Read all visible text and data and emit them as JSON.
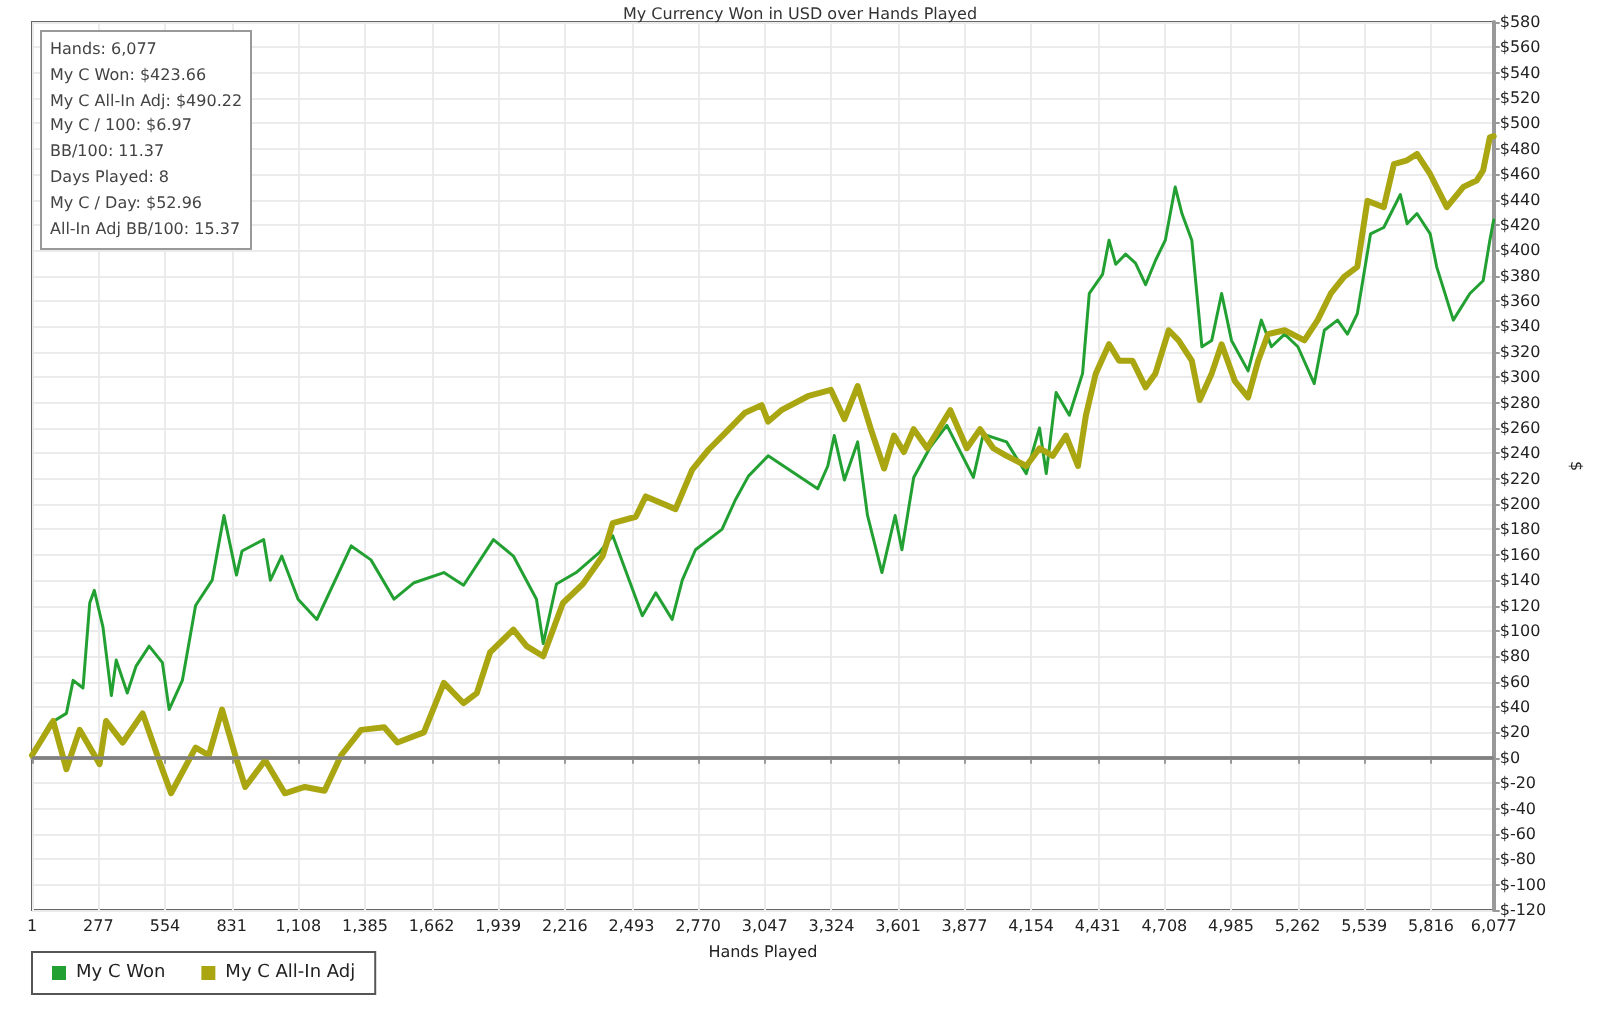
{
  "chart_data": {
    "type": "line",
    "title": "My Currency Won in USD over Hands Played",
    "xlabel": "Hands Played",
    "ylabel": "$",
    "annotations": [
      "Hands: 6,077",
      "My C Won: $423.66",
      "My C All-In Adj: $490.22",
      "My C / 100: $6.97",
      "BB/100: 11.37",
      "Days Played: 8",
      "My C / Day: $52.96",
      "All-In Adj BB/100: 15.37"
    ],
    "xlim": [
      1,
      6077
    ],
    "xticks": [
      {
        "value": 1,
        "label": "1"
      },
      {
        "value": 277,
        "label": "277"
      },
      {
        "value": 554,
        "label": "554"
      },
      {
        "value": 831,
        "label": "831"
      },
      {
        "value": 1108,
        "label": "1,108"
      },
      {
        "value": 1385,
        "label": "1,385"
      },
      {
        "value": 1662,
        "label": "1,662"
      },
      {
        "value": 1939,
        "label": "1,939"
      },
      {
        "value": 2216,
        "label": "2,216"
      },
      {
        "value": 2493,
        "label": "2,493"
      },
      {
        "value": 2770,
        "label": "2,770"
      },
      {
        "value": 3047,
        "label": "3,047"
      },
      {
        "value": 3324,
        "label": "3,324"
      },
      {
        "value": 3601,
        "label": "3,601"
      },
      {
        "value": 3877,
        "label": "3,877"
      },
      {
        "value": 4154,
        "label": "4,154"
      },
      {
        "value": 4431,
        "label": "4,431"
      },
      {
        "value": 4708,
        "label": "4,708"
      },
      {
        "value": 4985,
        "label": "4,985"
      },
      {
        "value": 5262,
        "label": "5,262"
      },
      {
        "value": 5539,
        "label": "5,539"
      },
      {
        "value": 5816,
        "label": "5,816"
      },
      {
        "value": 6077,
        "label": "6,077"
      }
    ],
    "ylim": [
      -120,
      580
    ],
    "yticks": [
      {
        "value": -120,
        "label": "$-120"
      },
      {
        "value": -100,
        "label": "$-100"
      },
      {
        "value": -80,
        "label": "$-80"
      },
      {
        "value": -60,
        "label": "$-60"
      },
      {
        "value": -40,
        "label": "$-40"
      },
      {
        "value": -20,
        "label": "$-20"
      },
      {
        "value": 0,
        "label": "$0"
      },
      {
        "value": 20,
        "label": "$20"
      },
      {
        "value": 40,
        "label": "$40"
      },
      {
        "value": 60,
        "label": "$60"
      },
      {
        "value": 80,
        "label": "$80"
      },
      {
        "value": 100,
        "label": "$100"
      },
      {
        "value": 120,
        "label": "$120"
      },
      {
        "value": 140,
        "label": "$140"
      },
      {
        "value": 160,
        "label": "$160"
      },
      {
        "value": 180,
        "label": "$180"
      },
      {
        "value": 200,
        "label": "$200"
      },
      {
        "value": 220,
        "label": "$220"
      },
      {
        "value": 240,
        "label": "$240"
      },
      {
        "value": 260,
        "label": "$260"
      },
      {
        "value": 280,
        "label": "$280"
      },
      {
        "value": 300,
        "label": "$300"
      },
      {
        "value": 320,
        "label": "$320"
      },
      {
        "value": 340,
        "label": "$340"
      },
      {
        "value": 360,
        "label": "$360"
      },
      {
        "value": 380,
        "label": "$380"
      },
      {
        "value": 400,
        "label": "$400"
      },
      {
        "value": 420,
        "label": "$420"
      },
      {
        "value": 440,
        "label": "$440"
      },
      {
        "value": 460,
        "label": "$460"
      },
      {
        "value": 480,
        "label": "$480"
      },
      {
        "value": 500,
        "label": "$500"
      },
      {
        "value": 520,
        "label": "$520"
      },
      {
        "value": 540,
        "label": "$540"
      },
      {
        "value": 560,
        "label": "$560"
      },
      {
        "value": 580,
        "label": "$580"
      }
    ],
    "grid": true,
    "legend": "bottom left",
    "marker": "none",
    "line_style": "solid",
    "ref_lines": [
      {
        "axis": "y",
        "value": 0,
        "color": "#808080"
      }
    ],
    "series": [
      {
        "name": "My C Won",
        "color": "#22a032",
        "x": [
          1,
          75,
          144,
          172,
          213,
          241,
          260,
          296,
          331,
          351,
          397,
          433,
          488,
          543,
          571,
          626,
          681,
          750,
          799,
          851,
          874,
          964,
          992,
          1039,
          1107,
          1185,
          1328,
          1410,
          1506,
          1589,
          1713,
          1795,
          1919,
          2002,
          2098,
          2126,
          2181,
          2263,
          2360,
          2415,
          2538,
          2594,
          2662,
          2704,
          2759,
          2869,
          2924,
          2979,
          3061,
          3267,
          3309,
          3336,
          3378,
          3433,
          3474,
          3534,
          3589,
          3617,
          3666,
          3735,
          3804,
          3914,
          3955,
          4052,
          4134,
          4189,
          4217,
          4258,
          4313,
          4368,
          4396,
          4451,
          4478,
          4506,
          4547,
          4588,
          4630,
          4671,
          4712,
          4753,
          4781,
          4822,
          4864,
          4905,
          4946,
          4987,
          5056,
          5111,
          5153,
          5208,
          5263,
          5331,
          5373,
          5428,
          5469,
          5510,
          5565,
          5620,
          5689,
          5717,
          5758,
          5813,
          5840,
          5909,
          5978,
          6033,
          6061,
          6077
        ],
        "values": [
          2,
          27,
          35,
          61,
          55,
          122,
          132,
          103,
          49,
          77,
          51,
          72,
          88,
          75,
          38,
          61,
          120,
          140,
          191,
          144,
          163,
          172,
          140,
          159,
          125,
          109,
          167,
          156,
          125,
          138,
          146,
          136,
          172,
          159,
          125,
          90,
          137,
          146,
          162,
          175,
          112,
          130,
          109,
          140,
          164,
          180,
          203,
          222,
          238,
          212,
          230,
          254,
          219,
          249,
          191,
          146,
          191,
          164,
          221,
          245,
          262,
          221,
          255,
          249,
          224,
          260,
          224,
          288,
          270,
          303,
          366,
          381,
          408,
          389,
          397,
          390,
          373,
          392,
          408,
          450,
          429,
          408,
          324,
          329,
          366,
          329,
          305,
          345,
          324,
          334,
          324,
          295,
          337,
          345,
          334,
          350,
          413,
          418,
          444,
          421,
          429,
          413,
          387,
          345,
          366,
          376,
          408,
          424
        ]
      },
      {
        "name": "My C All-In Adj",
        "color": "#aaa612",
        "x": [
          1,
          89,
          144,
          199,
          282,
          309,
          378,
          461,
          529,
          579,
          681,
          736,
          791,
          846,
          887,
          970,
          1052,
          1135,
          1217,
          1286,
          1369,
          1465,
          1520,
          1630,
          1713,
          1795,
          1850,
          1905,
          2002,
          2057,
          2126,
          2208,
          2291,
          2373,
          2415,
          2511,
          2552,
          2676,
          2745,
          2814,
          2882,
          2965,
          3034,
          3061,
          3116,
          3226,
          3322,
          3378,
          3433,
          3488,
          3543,
          3584,
          3625,
          3666,
          3722,
          3818,
          3887,
          3942,
          3997,
          4052,
          4134,
          4189,
          4244,
          4299,
          4349,
          4382,
          4423,
          4478,
          4520,
          4575,
          4630,
          4671,
          4726,
          4767,
          4822,
          4855,
          4905,
          4946,
          5001,
          5056,
          5098,
          5139,
          5208,
          5290,
          5345,
          5400,
          5455,
          5510,
          5552,
          5620,
          5662,
          5717,
          5758,
          5813,
          5882,
          5951,
          6006,
          6033,
          6061,
          6077
        ],
        "values": [
          2,
          29,
          -9,
          22,
          -5,
          29,
          12,
          35,
          -2,
          -28,
          8,
          2,
          38,
          2,
          -23,
          -2,
          -28,
          -23,
          -26,
          2,
          22,
          24,
          12,
          20,
          59,
          43,
          51,
          83,
          101,
          88,
          80,
          122,
          137,
          159,
          185,
          190,
          206,
          196,
          227,
          243,
          256,
          272,
          278,
          265,
          274,
          285,
          290,
          267,
          293,
          259,
          228,
          254,
          241,
          259,
          244,
          274,
          244,
          259,
          244,
          238,
          230,
          244,
          238,
          254,
          230,
          270,
          303,
          326,
          313,
          313,
          292,
          303,
          337,
          329,
          313,
          282,
          303,
          326,
          297,
          284,
          313,
          334,
          337,
          329,
          345,
          366,
          379,
          387,
          439,
          434,
          468,
          471,
          476,
          460,
          434,
          450,
          455,
          463,
          489,
          490
        ]
      }
    ]
  }
}
